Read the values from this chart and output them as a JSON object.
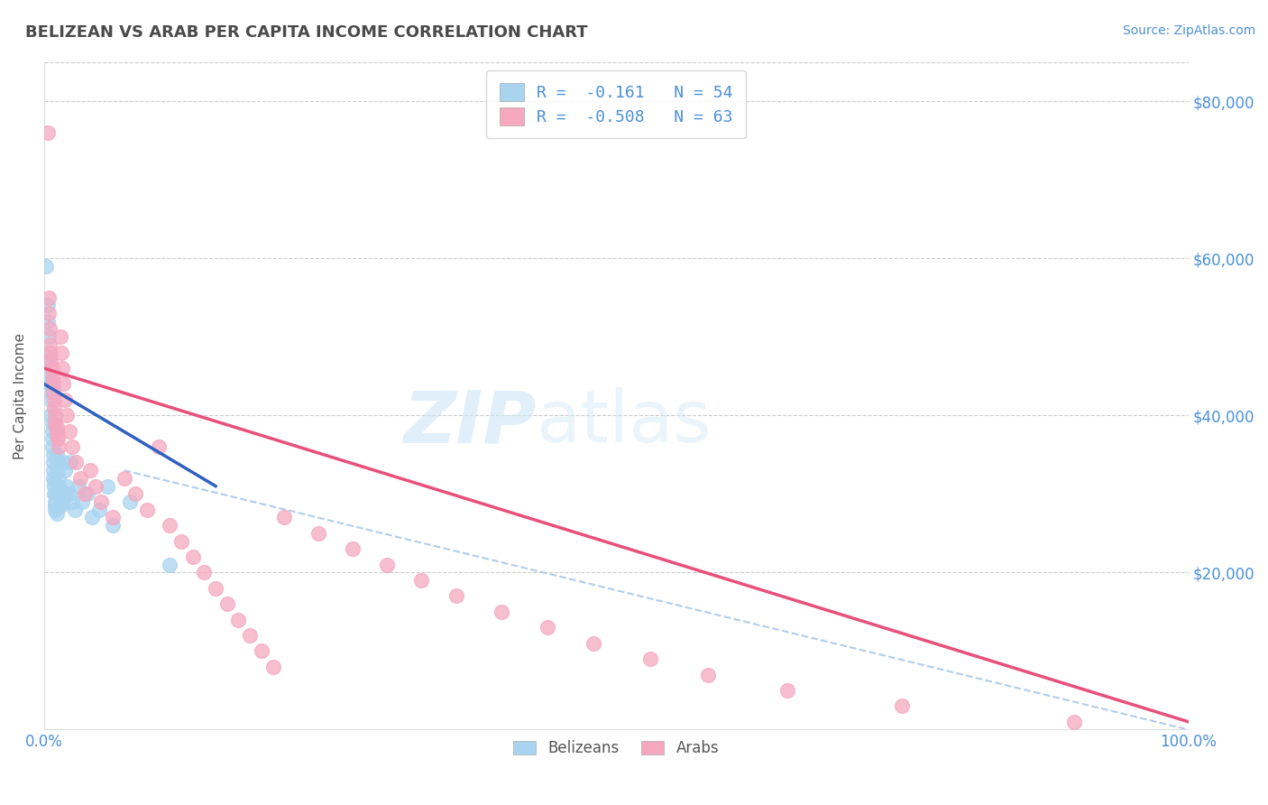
{
  "title": "BELIZEAN VS ARAB PER CAPITA INCOME CORRELATION CHART",
  "source": "Source: ZipAtlas.com",
  "ylabel": "Per Capita Income",
  "xlim": [
    0.0,
    1.0
  ],
  "ylim": [
    0,
    85000
  ],
  "xtick_labels": [
    "0.0%",
    "100.0%"
  ],
  "ytick_labels": [
    "$20,000",
    "$40,000",
    "$60,000",
    "$80,000"
  ],
  "ytick_values": [
    20000,
    40000,
    60000,
    80000
  ],
  "legend_labels": [
    "Belizeans",
    "Arabs"
  ],
  "belizean_R": -0.161,
  "belizean_N": 54,
  "arab_R": -0.508,
  "arab_N": 63,
  "belizean_color": "#a8d4f0",
  "arab_color": "#f5a8c0",
  "belizean_line_color": "#3060c0",
  "arab_line_color": "#e8507a",
  "dashed_line_color": "#a8c8e8",
  "axis_color": "#4a90d9",
  "background_color": "#ffffff",
  "belizean_scatter_x": [
    0.002,
    0.003,
    0.003,
    0.004,
    0.004,
    0.005,
    0.005,
    0.005,
    0.006,
    0.006,
    0.006,
    0.007,
    0.007,
    0.007,
    0.007,
    0.008,
    0.008,
    0.008,
    0.008,
    0.009,
    0.009,
    0.009,
    0.01,
    0.01,
    0.01,
    0.01,
    0.011,
    0.011,
    0.012,
    0.012,
    0.013,
    0.013,
    0.014,
    0.014,
    0.015,
    0.015,
    0.016,
    0.017,
    0.018,
    0.019,
    0.02,
    0.022,
    0.023,
    0.025,
    0.027,
    0.03,
    0.033,
    0.038,
    0.042,
    0.048,
    0.055,
    0.06,
    0.075,
    0.11
  ],
  "belizean_scatter_y": [
    59000,
    54000,
    52000,
    50000,
    48000,
    47000,
    45000,
    44000,
    43000,
    42000,
    40000,
    39000,
    38000,
    37000,
    36000,
    35000,
    34000,
    33000,
    32000,
    31500,
    31000,
    30000,
    30000,
    29000,
    28500,
    28000,
    27500,
    35000,
    34000,
    33000,
    32000,
    31000,
    30500,
    30000,
    29000,
    28500,
    29000,
    34000,
    33000,
    30000,
    31000,
    30000,
    34000,
    29000,
    28000,
    31000,
    29000,
    30000,
    27000,
    28000,
    31000,
    26000,
    29000,
    21000
  ],
  "arab_scatter_x": [
    0.003,
    0.004,
    0.004,
    0.005,
    0.005,
    0.006,
    0.006,
    0.007,
    0.007,
    0.008,
    0.008,
    0.009,
    0.009,
    0.01,
    0.01,
    0.011,
    0.011,
    0.012,
    0.012,
    0.013,
    0.014,
    0.015,
    0.016,
    0.017,
    0.018,
    0.02,
    0.022,
    0.025,
    0.028,
    0.032,
    0.036,
    0.04,
    0.045,
    0.05,
    0.06,
    0.07,
    0.08,
    0.09,
    0.1,
    0.11,
    0.12,
    0.13,
    0.14,
    0.15,
    0.16,
    0.17,
    0.18,
    0.19,
    0.2,
    0.21,
    0.24,
    0.27,
    0.3,
    0.33,
    0.36,
    0.4,
    0.44,
    0.48,
    0.53,
    0.58,
    0.65,
    0.75,
    0.9
  ],
  "arab_scatter_y": [
    76000,
    55000,
    53000,
    51000,
    49000,
    48000,
    47000,
    46000,
    45000,
    44000,
    43000,
    42000,
    41000,
    40000,
    39000,
    38500,
    38000,
    37500,
    37000,
    36000,
    50000,
    48000,
    46000,
    44000,
    42000,
    40000,
    38000,
    36000,
    34000,
    32000,
    30000,
    33000,
    31000,
    29000,
    27000,
    32000,
    30000,
    28000,
    36000,
    26000,
    24000,
    22000,
    20000,
    18000,
    16000,
    14000,
    12000,
    10000,
    8000,
    27000,
    25000,
    23000,
    21000,
    19000,
    17000,
    15000,
    13000,
    11000,
    9000,
    7000,
    5000,
    3000,
    1000
  ],
  "belizean_line_x0": 0.0,
  "belizean_line_x1": 0.15,
  "belizean_line_y0": 44000,
  "belizean_line_y1": 31000,
  "arab_line_x0": 0.0,
  "arab_line_x1": 1.0,
  "arab_line_y0": 46000,
  "arab_line_y1": 1000,
  "dash_line_x0": 0.07,
  "dash_line_x1": 1.0,
  "dash_line_y0": 33000,
  "dash_line_y1": 0
}
